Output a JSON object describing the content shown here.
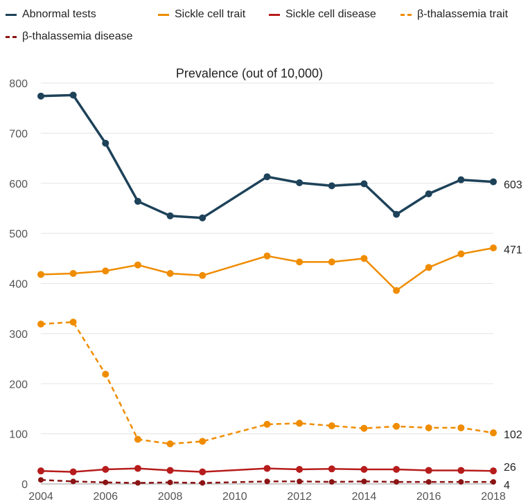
{
  "chart_data": {
    "type": "line",
    "title": "Prevalence (out of 10,000)",
    "xlabel": "",
    "ylabel": "",
    "x": [
      2004,
      2005,
      2006,
      2007,
      2008,
      2009,
      2011,
      2012,
      2013,
      2014,
      2015,
      2016,
      2017,
      2018
    ],
    "xticks": [
      "2004",
      "2006",
      "2008",
      "2010",
      "2012",
      "2014",
      "2016",
      "2018"
    ],
    "yticks": [
      "0",
      "100",
      "200",
      "300",
      "400",
      "500",
      "600",
      "700",
      "800"
    ],
    "xlim": [
      2004,
      2018
    ],
    "ylim": [
      0,
      800
    ],
    "grid": true,
    "legend_position": "top-left",
    "series": [
      {
        "name": "Abnormal tests",
        "color": "#1d4259",
        "dash": false,
        "values": [
          774,
          776,
          680,
          564,
          535,
          531,
          613,
          601,
          595,
          599,
          538,
          579,
          607,
          603
        ],
        "end_label": "603"
      },
      {
        "name": "Sickle cell trait",
        "color": "#ef8c00",
        "dash": false,
        "values": [
          418,
          420,
          425,
          437,
          420,
          416,
          455,
          443,
          443,
          450,
          386,
          432,
          459,
          471
        ],
        "end_label": "471"
      },
      {
        "name": "Sickle cell disease",
        "color": "#b71c1c",
        "dash": false,
        "values": [
          26,
          24,
          29,
          31,
          27,
          24,
          31,
          29,
          30,
          29,
          29,
          27,
          27,
          26
        ],
        "end_label": "26"
      },
      {
        "name": "β-thalassemia trait",
        "color": "#ef8c00",
        "dash": true,
        "values": [
          319,
          323,
          219,
          89,
          80,
          85,
          119,
          121,
          116,
          111,
          115,
          112,
          112,
          102
        ],
        "end_label": "102"
      },
      {
        "name": "β-thalassemia disease",
        "color": "#8b1414",
        "dash": true,
        "values": [
          8,
          5,
          3,
          2,
          3,
          2,
          5,
          5,
          4,
          5,
          4,
          4,
          4,
          4
        ],
        "end_label": "4"
      }
    ]
  }
}
